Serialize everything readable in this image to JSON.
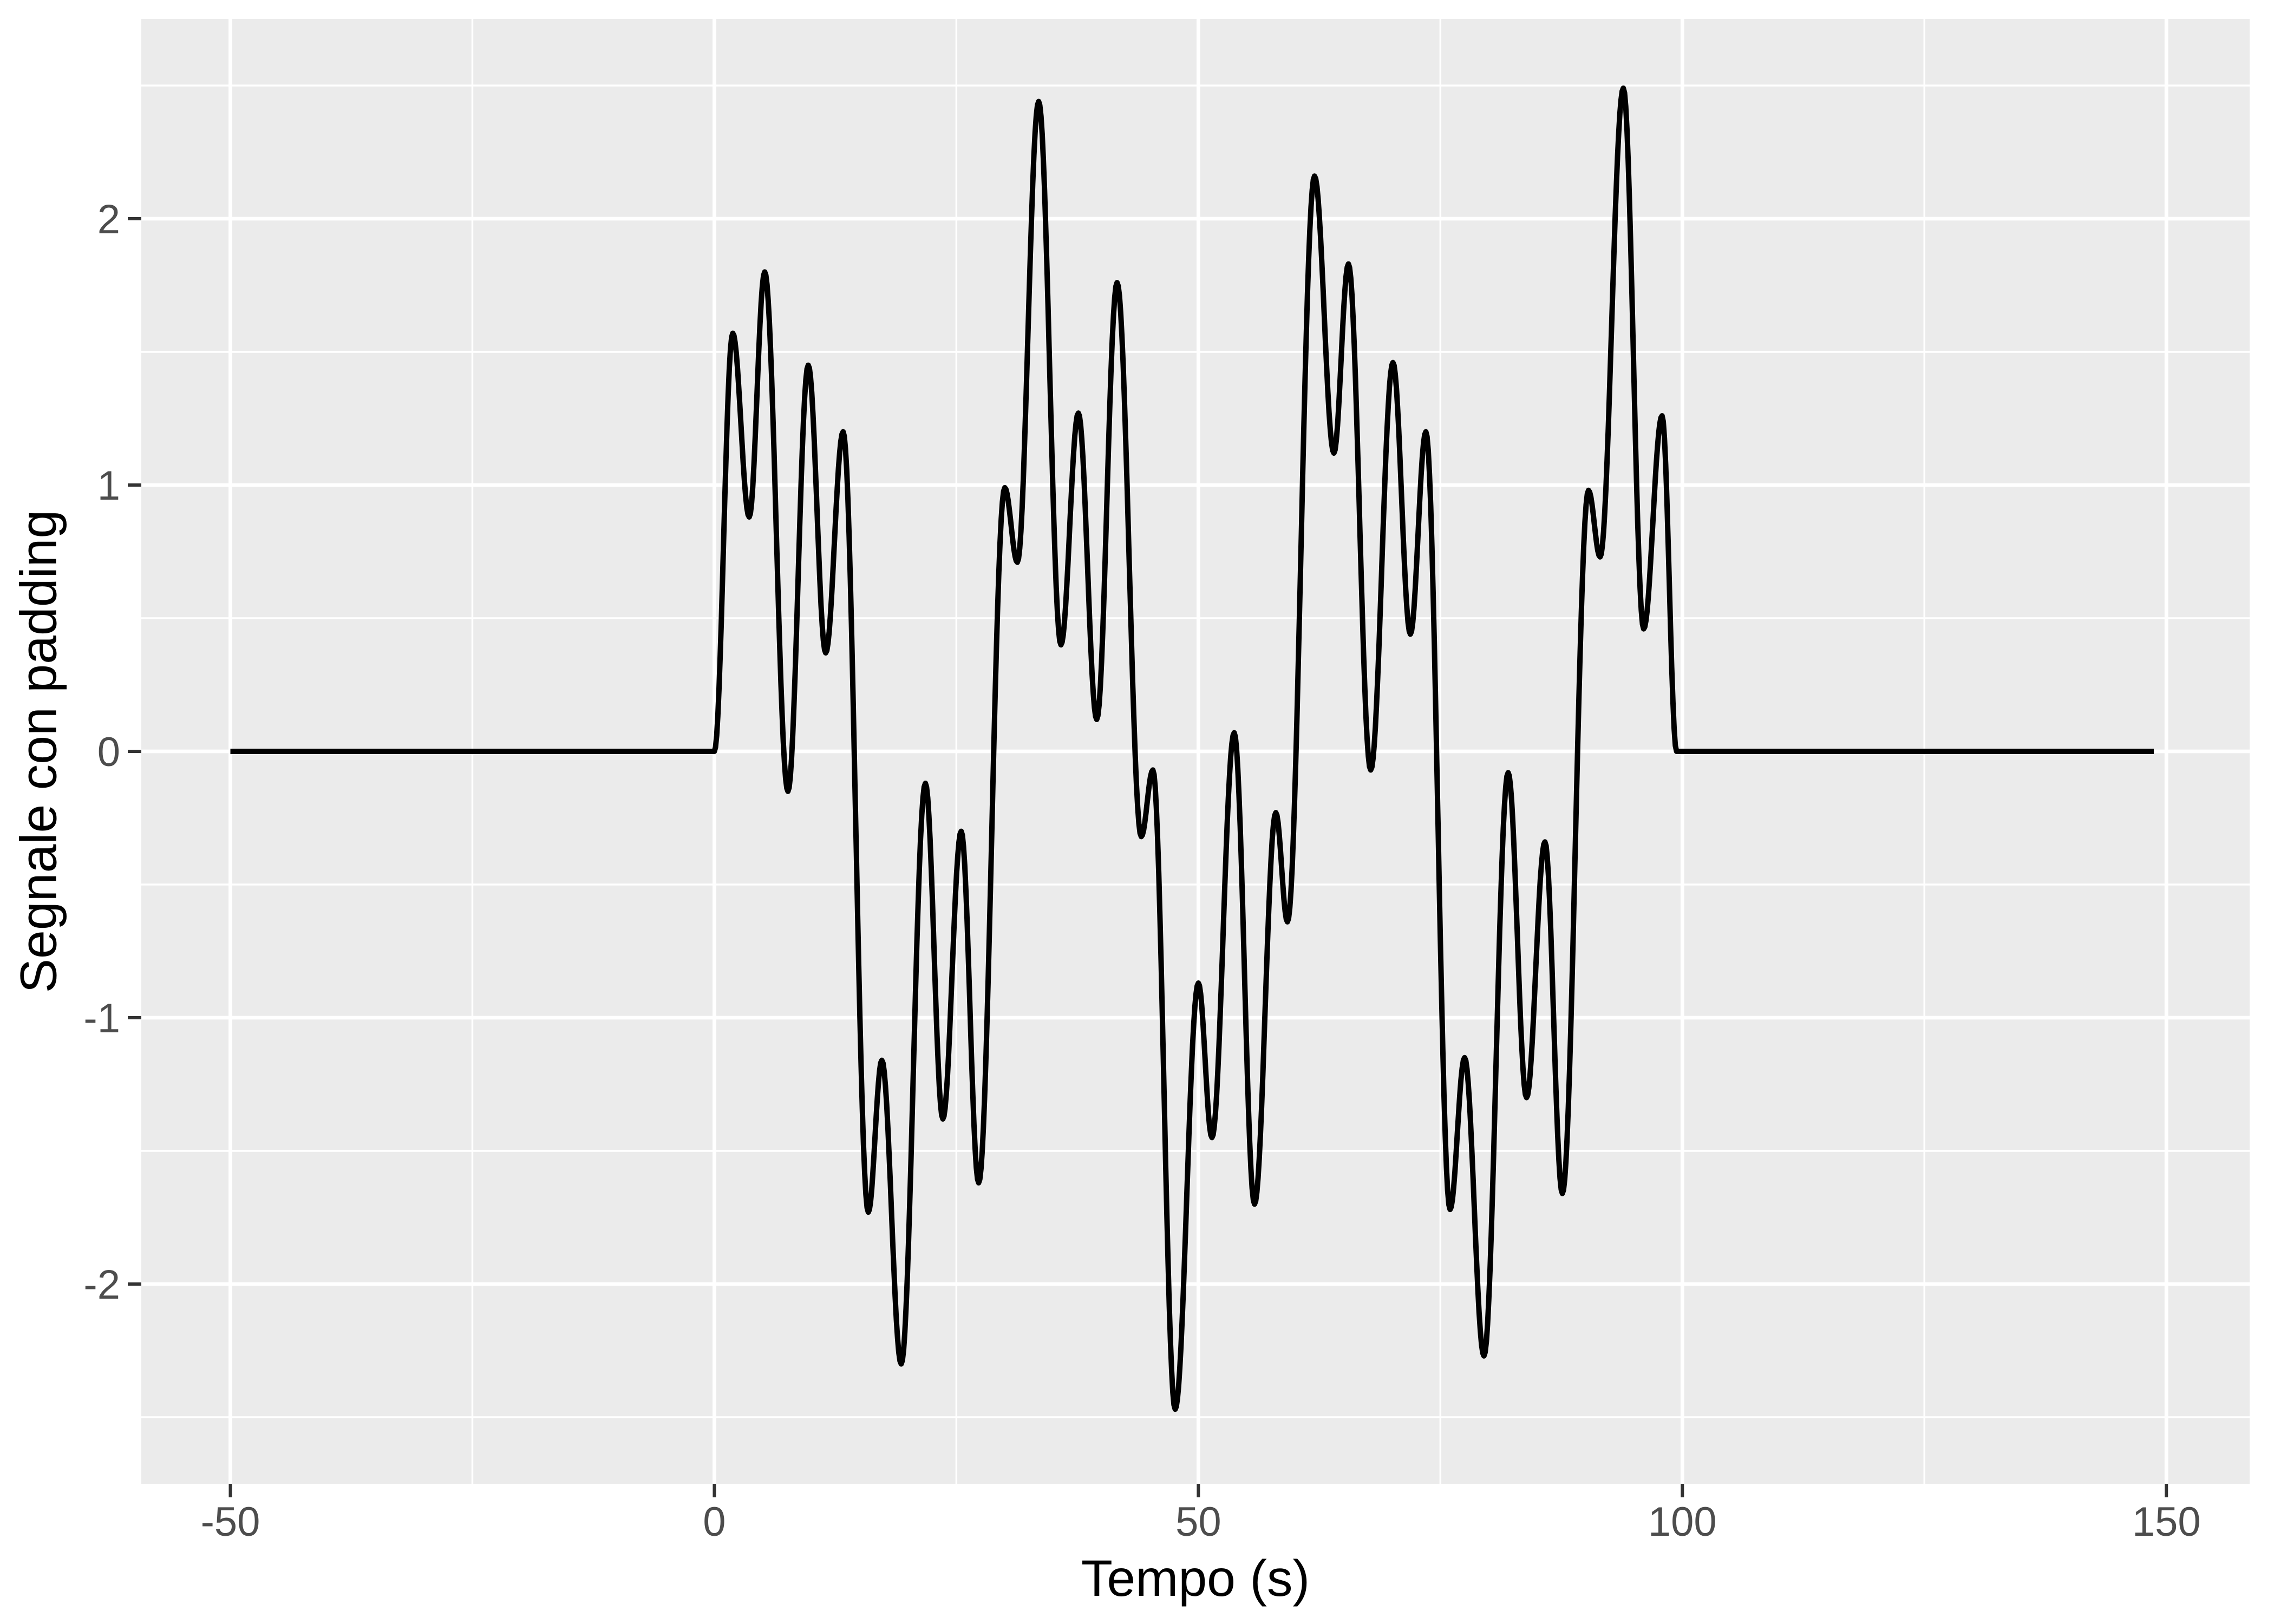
{
  "chart_data": {
    "type": "line",
    "title": "",
    "xlabel": "Tempo (s)",
    "ylabel": "Segnale con padding",
    "x_axis": {
      "ticks": [
        -50,
        0,
        50,
        100,
        150
      ],
      "tick_labels": [
        "-50",
        "0",
        "50",
        "100",
        "150"
      ],
      "minor_ticks": [
        -25,
        25,
        75,
        125
      ],
      "range": [
        -59.2,
        158.6
      ]
    },
    "y_axis": {
      "ticks": [
        2,
        1,
        0,
        -1,
        -2
      ],
      "tick_labels": [
        "2",
        "1",
        "0",
        "-1",
        "-2"
      ],
      "minor_ticks": [
        2.5,
        1.5,
        0.5,
        -0.5,
        -1.5,
        -2.5
      ],
      "range": [
        -2.75,
        2.75
      ]
    },
    "grid": "on",
    "legend": "none",
    "series_name": "segnale",
    "signal": {
      "padding_start": {
        "t0": -50,
        "t1": 0,
        "y": 0
      },
      "padding_end": {
        "t0": 99.4,
        "t1": 148.7,
        "y": 0
      },
      "keypoints": {
        "t": [
          0.0,
          1.9,
          3.6,
          5.2,
          7.6,
          9.7,
          11.5,
          13.3,
          15.9,
          17.3,
          19.3,
          21.8,
          23.6,
          25.5,
          27.3,
          30.0,
          31.3,
          33.5,
          35.8,
          37.6,
          39.5,
          41.6,
          44.1,
          45.3,
          47.6,
          50.0,
          51.4,
          53.7,
          55.8,
          58.0,
          59.2,
          62.0,
          64.0,
          65.5,
          67.8,
          70.1,
          71.9,
          73.5,
          76.0,
          77.5,
          79.5,
          82.0,
          83.9,
          85.8,
          87.6,
          90.3,
          91.5,
          93.9,
          96.0,
          97.9,
          99.4
        ],
        "y": [
          0.0,
          1.57,
          0.88,
          1.8,
          -0.15,
          1.45,
          0.37,
          1.2,
          -1.73,
          -1.16,
          -2.3,
          -0.12,
          -1.38,
          -0.3,
          -1.62,
          0.99,
          0.71,
          2.44,
          0.4,
          1.27,
          0.12,
          1.76,
          -0.32,
          -0.07,
          -2.47,
          -0.87,
          -1.45,
          0.07,
          -1.7,
          -0.23,
          -0.64,
          2.16,
          1.12,
          1.83,
          -0.07,
          1.46,
          0.44,
          1.2,
          -1.72,
          -1.15,
          -2.27,
          -0.08,
          -1.3,
          -0.34,
          -1.66,
          0.98,
          0.73,
          2.49,
          0.46,
          1.26,
          0.0
        ]
      }
    },
    "colors": {
      "panel_background": "#EBEBEB",
      "grid_major": "#FFFFFF",
      "grid_minor": "#FFFFFF",
      "line": "#000000",
      "tick_text": "#4D4D4D",
      "tick_mark": "#333333",
      "title_text": "#000000",
      "figure_background": "#FFFFFF"
    }
  }
}
